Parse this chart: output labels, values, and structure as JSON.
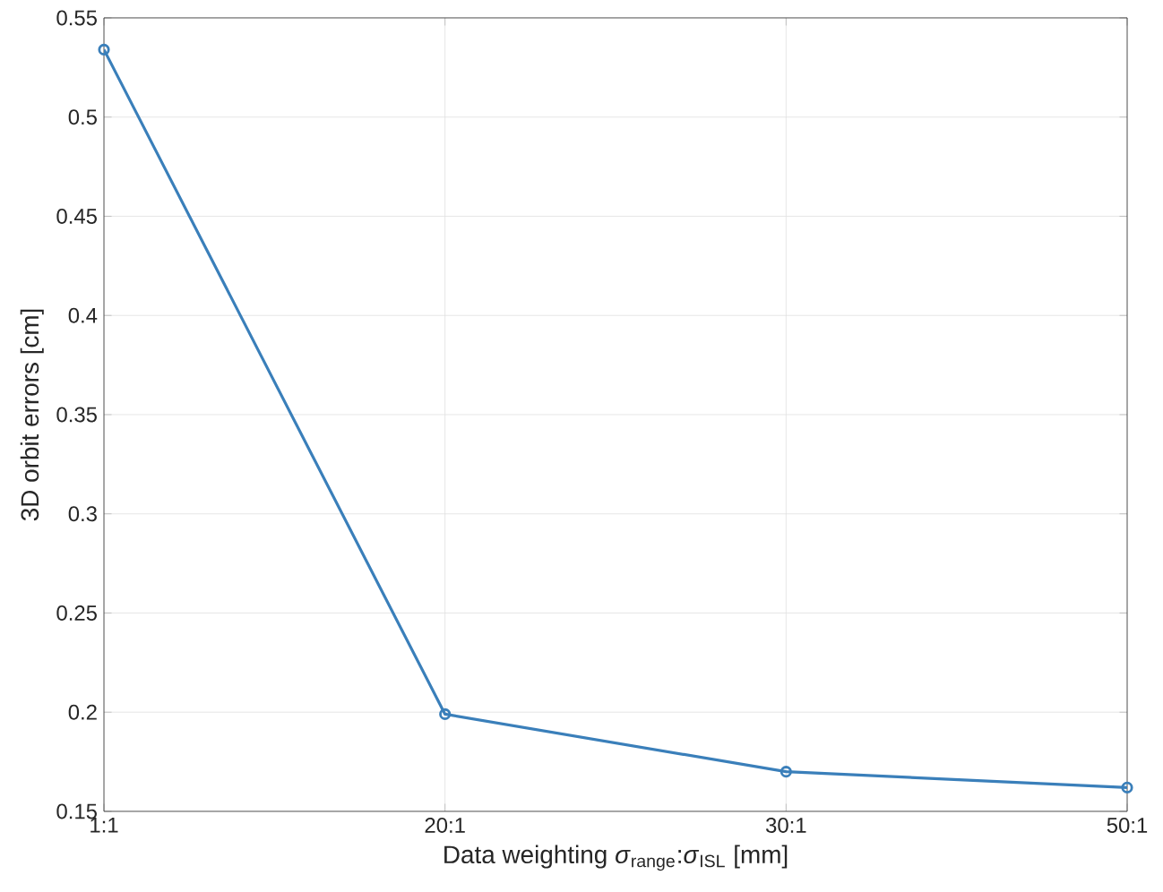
{
  "chart_data": {
    "type": "line",
    "xlabel": "Data weighting *σ*$_{range}$:*σ*$_{ISL}$ [mm]",
    "ylabel": "3D orbit errors [cm]",
    "categories": [
      "1:1",
      "20:1",
      "30:1",
      "50:1"
    ],
    "values": [
      0.534,
      0.199,
      0.17,
      0.162
    ],
    "color": "#3a7fba",
    "ylim": [
      0.15,
      0.55
    ],
    "yticks": [
      0.15,
      0.2,
      0.25,
      0.3,
      0.35,
      0.4,
      0.45,
      0.5,
      0.55
    ],
    "grid": true,
    "marker": "circle",
    "line_style": "solid"
  }
}
